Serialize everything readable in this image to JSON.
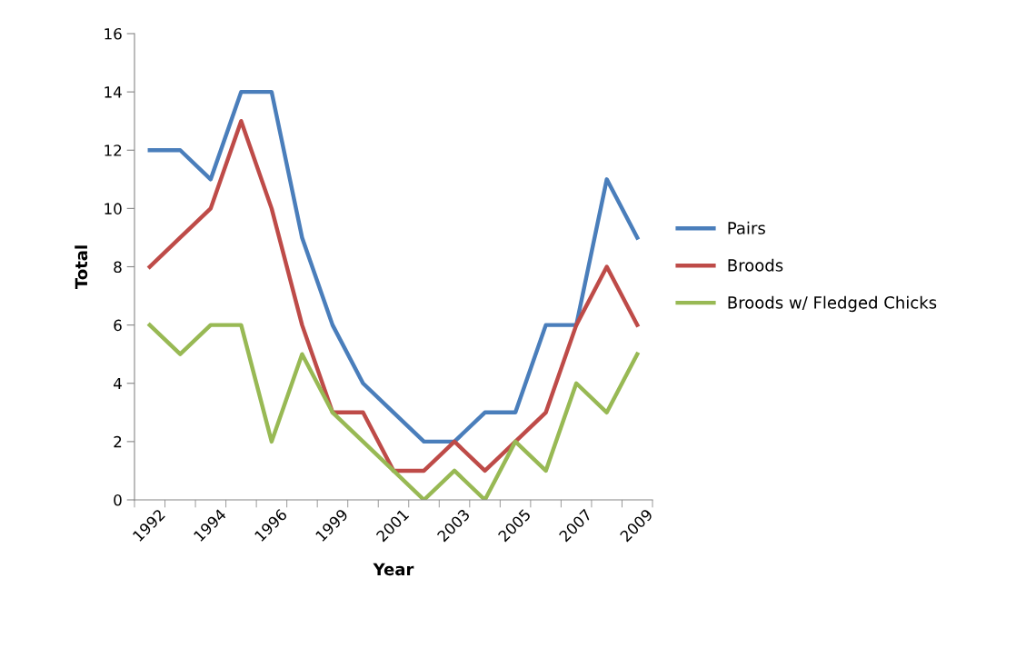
{
  "chart_data": {
    "type": "line",
    "xlabel": "Year",
    "ylabel": "Total",
    "categories": [
      "1992",
      null,
      "1994",
      null,
      "1996",
      null,
      "1999",
      null,
      "2001",
      null,
      "2003",
      null,
      "2005",
      null,
      "2007",
      null,
      "2009"
    ],
    "series": [
      {
        "name": "Pairs",
        "color": "#4a7ebb",
        "values": [
          12,
          12,
          11,
          14,
          14,
          9,
          6,
          4,
          3,
          2,
          2,
          3,
          3,
          6,
          6,
          11,
          9
        ]
      },
      {
        "name": "Broods",
        "color": "#be4b48",
        "values": [
          8,
          9,
          10,
          13,
          10,
          6,
          3,
          3,
          1,
          1,
          2,
          1,
          2,
          3,
          6,
          8,
          6
        ]
      },
      {
        "name": "Broods w/ Fledged Chicks",
        "color": "#98b954",
        "values": [
          6,
          5,
          6,
          6,
          2,
          5,
          3,
          2,
          1,
          0,
          1,
          0,
          2,
          1,
          4,
          3,
          5
        ]
      }
    ],
    "ylim": [
      0,
      16
    ],
    "yticks": [
      0,
      2,
      4,
      6,
      8,
      10,
      12,
      14,
      16
    ],
    "grid": false,
    "legend": "right",
    "marker": "none",
    "line_style": "solid"
  }
}
